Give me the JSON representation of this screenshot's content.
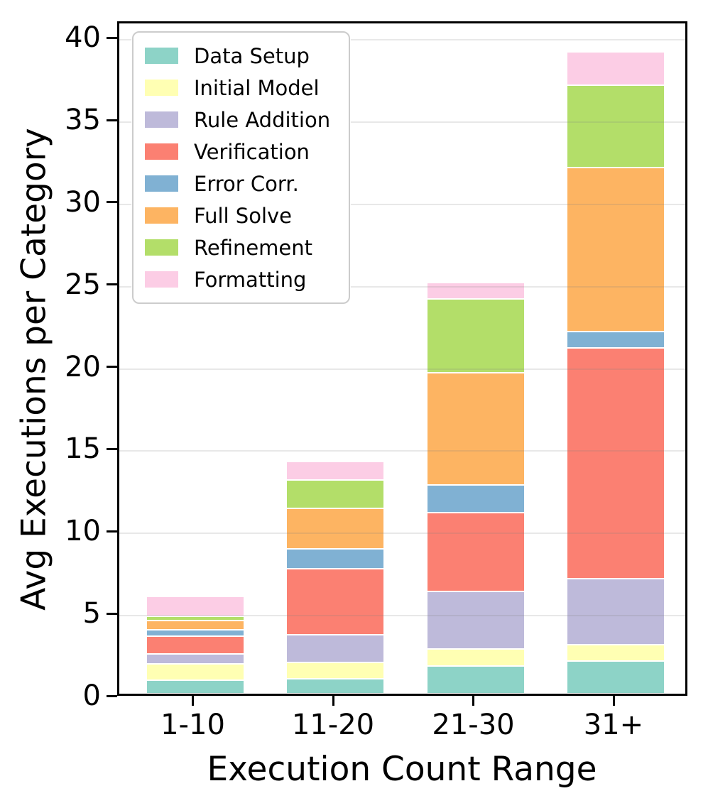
{
  "chart_data": {
    "type": "bar",
    "stacked": true,
    "title": "",
    "xlabel": "Execution Count Range",
    "ylabel": "Avg Executions per Category",
    "categories": [
      "1-10",
      "11-20",
      "21-30",
      "31+"
    ],
    "series": [
      {
        "name": "Data Setup",
        "color": "#8dd3c7",
        "values": [
          0.8,
          0.9,
          1.7,
          2.0
        ]
      },
      {
        "name": "Initial Model",
        "color": "#ffffb3",
        "values": [
          1.0,
          1.0,
          1.0,
          1.0
        ]
      },
      {
        "name": "Rule Addition",
        "color": "#bebada",
        "values": [
          0.6,
          1.7,
          3.5,
          4.0
        ]
      },
      {
        "name": "Verification",
        "color": "#fb8072",
        "values": [
          1.1,
          4.0,
          4.8,
          14.0
        ]
      },
      {
        "name": "Error Corr.",
        "color": "#80b1d3",
        "values": [
          0.4,
          1.2,
          1.7,
          1.0
        ]
      },
      {
        "name": "Full Solve",
        "color": "#fdb462",
        "values": [
          0.55,
          2.45,
          6.8,
          10.0
        ]
      },
      {
        "name": "Refinement",
        "color": "#b3de69",
        "values": [
          0.25,
          1.75,
          4.5,
          5.0
        ]
      },
      {
        "name": "Formatting",
        "color": "#fccde5",
        "values": [
          1.2,
          1.1,
          1.0,
          2.0
        ]
      }
    ],
    "bar_totals": [
      5.9,
      14.1,
      25.0,
      39.0
    ],
    "ylim": [
      0,
      41
    ],
    "yticks": [
      0,
      5,
      10,
      15,
      20,
      25,
      30,
      35,
      40
    ],
    "grid": true,
    "legend_position": "upper-left"
  }
}
